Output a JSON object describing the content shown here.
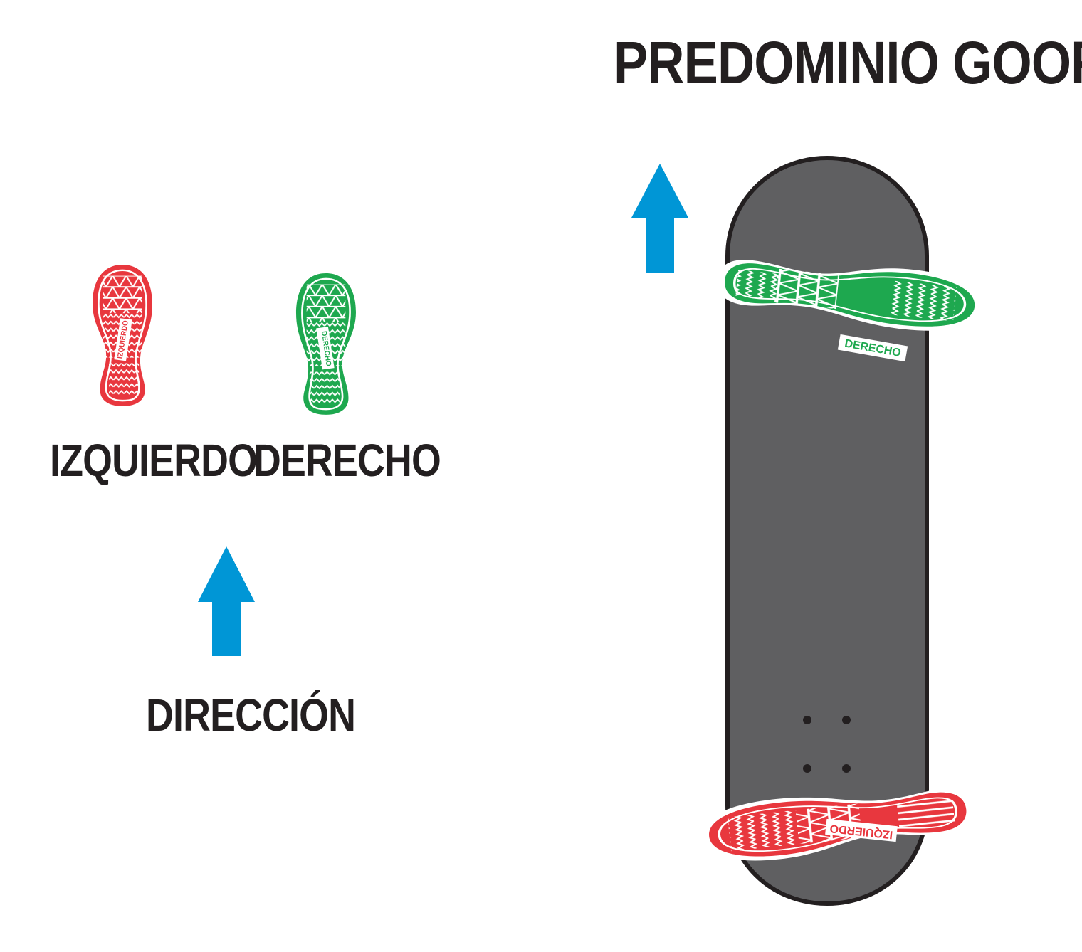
{
  "title": "PREDOMINIO GOOFY",
  "legend": {
    "left_foot_label": "IZQUIERDO",
    "right_foot_label": "DERECHO",
    "direction_label": "DIRECCIÓN"
  },
  "sole_text": {
    "left": "IZQUIERDO",
    "right": "DERECHO"
  },
  "colors": {
    "left_foot": "#e8373e",
    "right_foot": "#1ea84f",
    "arrow": "#0096d6",
    "board": "#5f5f61",
    "board_outline": "#231f20",
    "text": "#231f20"
  },
  "icons": [
    "footprint-left-icon",
    "footprint-right-icon",
    "direction-arrow-icon",
    "skateboard-icon"
  ]
}
